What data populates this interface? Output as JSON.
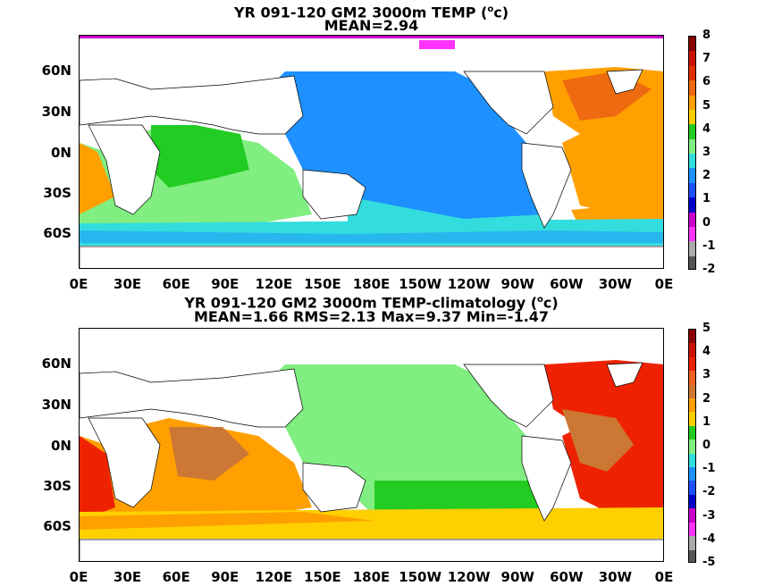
{
  "panels": [
    {
      "title_line1": "YR 091-120 GM2 3000m TEMP (",
      "title_sup": "o",
      "title_unit_tail": "c)",
      "title_line2": "MEAN=2.94",
      "colorbar_labels": [
        "8",
        "7",
        "6",
        "5",
        "4",
        "3",
        "2",
        "1",
        "0",
        "-1",
        "-2"
      ],
      "colorbar_colors": [
        "#8b0000",
        "#cc1100",
        "#e03000",
        "#ee6a10",
        "#ffa000",
        "#ffd000",
        "#22cc22",
        "#80ee80",
        "#33dddd",
        "#1e90ff",
        "#1e50ff",
        "#0000cc",
        "#cc00cc",
        "#ff33ff",
        "#aaaaaa",
        "#555555"
      ]
    },
    {
      "title_line1": "YR 091-120 GM2 3000m TEMP-climatology (",
      "title_sup": "o",
      "title_unit_tail": "c)",
      "title_line2": "MEAN=1.66   RMS=2.13   Max=9.37   Min=-1.47",
      "colorbar_labels": [
        "5",
        "4",
        "3",
        "2",
        "1",
        "0",
        "-1",
        "-2",
        "-3",
        "-4",
        "-5"
      ],
      "colorbar_colors": [
        "#8b0000",
        "#cc1100",
        "#ee2200",
        "#f06020",
        "#cc7733",
        "#ffa000",
        "#ffd000",
        "#22cc22",
        "#80ee80",
        "#33dddd",
        "#1e90ff",
        "#1e50ff",
        "#0000cc",
        "#cc00cc",
        "#ff33ff",
        "#aaaaaa",
        "#555555"
      ]
    }
  ],
  "lat_labels": [
    "60N",
    "30N",
    "0N",
    "30S",
    "60S"
  ],
  "lon_labels": [
    "0E",
    "30E",
    "60E",
    "90E",
    "120E",
    "150E",
    "180E",
    "150W",
    "120W",
    "90W",
    "60W",
    "30W",
    "0E"
  ]
}
